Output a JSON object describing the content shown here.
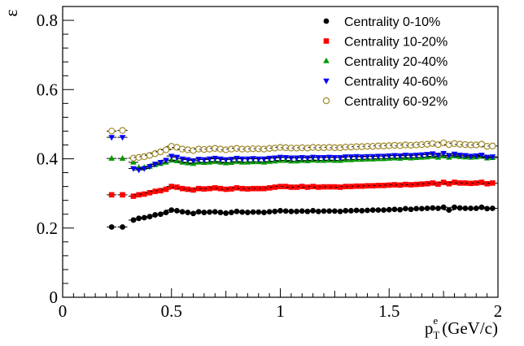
{
  "chart_data": {
    "type": "scatter",
    "xlabel": {
      "main": "p",
      "sup": "e",
      "sub": "T",
      "unit": "(GeV/c)"
    },
    "ylabel": "ε",
    "xlim": [
      0,
      2
    ],
    "ylim": [
      0,
      0.84
    ],
    "xticks": [
      0,
      0.5,
      1,
      1.5,
      2
    ],
    "xtick_labels": [
      "0",
      "0.5",
      "1",
      "1.5",
      "2"
    ],
    "yticks": [
      0,
      0.2,
      0.4,
      0.6,
      0.8
    ],
    "ytick_labels": [
      "0",
      "0.2",
      "0.4",
      "0.6",
      "0.8"
    ],
    "grid": false,
    "legend_position": "top-right",
    "x": [
      0.225,
      0.275,
      0.325,
      0.35,
      0.375,
      0.4,
      0.425,
      0.45,
      0.475,
      0.5,
      0.525,
      0.55,
      0.575,
      0.6,
      0.625,
      0.65,
      0.675,
      0.7,
      0.725,
      0.75,
      0.775,
      0.8,
      0.825,
      0.85,
      0.875,
      0.9,
      0.925,
      0.95,
      0.975,
      1.0,
      1.025,
      1.05,
      1.075,
      1.1,
      1.125,
      1.15,
      1.175,
      1.2,
      1.225,
      1.25,
      1.275,
      1.3,
      1.325,
      1.35,
      1.375,
      1.4,
      1.425,
      1.45,
      1.475,
      1.5,
      1.525,
      1.55,
      1.575,
      1.6,
      1.625,
      1.65,
      1.675,
      1.7,
      1.725,
      1.75,
      1.775,
      1.8,
      1.825,
      1.85,
      1.875,
      1.9,
      1.925,
      1.95,
      1.975
    ],
    "series": [
      {
        "name": "Centrality 0-10%",
        "marker": "circle",
        "color": "#000000",
        "values": [
          0.203,
          0.203,
          0.223,
          0.228,
          0.23,
          0.233,
          0.238,
          0.24,
          0.245,
          0.252,
          0.25,
          0.247,
          0.245,
          0.242,
          0.247,
          0.245,
          0.246,
          0.247,
          0.245,
          0.243,
          0.245,
          0.248,
          0.246,
          0.245,
          0.246,
          0.246,
          0.245,
          0.247,
          0.248,
          0.25,
          0.249,
          0.248,
          0.248,
          0.249,
          0.248,
          0.25,
          0.248,
          0.249,
          0.249,
          0.249,
          0.248,
          0.25,
          0.25,
          0.251,
          0.25,
          0.251,
          0.252,
          0.252,
          0.252,
          0.253,
          0.254,
          0.253,
          0.256,
          0.254,
          0.256,
          0.256,
          0.257,
          0.258,
          0.257,
          0.26,
          0.252,
          0.26,
          0.258,
          0.257,
          0.257,
          0.257,
          0.26,
          0.256,
          0.257
        ]
      },
      {
        "name": "Centrality 10-20%",
        "marker": "square",
        "color": "#ff0000",
        "values": [
          0.296,
          0.296,
          0.292,
          0.296,
          0.298,
          0.302,
          0.306,
          0.308,
          0.312,
          0.32,
          0.318,
          0.314,
          0.312,
          0.31,
          0.314,
          0.313,
          0.314,
          0.316,
          0.314,
          0.312,
          0.313,
          0.316,
          0.314,
          0.313,
          0.314,
          0.314,
          0.314,
          0.316,
          0.318,
          0.32,
          0.32,
          0.318,
          0.318,
          0.32,
          0.318,
          0.32,
          0.318,
          0.319,
          0.319,
          0.319,
          0.318,
          0.32,
          0.32,
          0.321,
          0.321,
          0.322,
          0.322,
          0.323,
          0.323,
          0.324,
          0.325,
          0.324,
          0.326,
          0.325,
          0.326,
          0.327,
          0.328,
          0.33,
          0.327,
          0.332,
          0.328,
          0.332,
          0.33,
          0.33,
          0.329,
          0.33,
          0.332,
          0.328,
          0.33
        ]
      },
      {
        "name": "Centrality 20-40%",
        "marker": "triangle-up",
        "color": "#009900",
        "values": [
          0.401,
          0.401,
          0.39,
          0.375,
          0.375,
          0.378,
          0.383,
          0.386,
          0.39,
          0.396,
          0.394,
          0.39,
          0.388,
          0.386,
          0.39,
          0.389,
          0.39,
          0.392,
          0.39,
          0.388,
          0.389,
          0.392,
          0.39,
          0.39,
          0.391,
          0.391,
          0.39,
          0.392,
          0.393,
          0.395,
          0.395,
          0.393,
          0.393,
          0.395,
          0.394,
          0.396,
          0.395,
          0.395,
          0.396,
          0.395,
          0.395,
          0.397,
          0.397,
          0.398,
          0.398,
          0.399,
          0.399,
          0.4,
          0.4,
          0.401,
          0.402,
          0.401,
          0.403,
          0.402,
          0.403,
          0.404,
          0.405,
          0.407,
          0.404,
          0.408,
          0.404,
          0.408,
          0.406,
          0.405,
          0.404,
          0.405,
          0.407,
          0.402,
          0.403
        ]
      },
      {
        "name": "Centrality 40-60%",
        "marker": "triangle-down",
        "color": "#0000ff",
        "values": [
          0.462,
          0.462,
          0.372,
          0.368,
          0.372,
          0.378,
          0.385,
          0.39,
          0.396,
          0.408,
          0.405,
          0.4,
          0.398,
          0.395,
          0.399,
          0.398,
          0.4,
          0.402,
          0.4,
          0.398,
          0.399,
          0.402,
          0.4,
          0.4,
          0.401,
          0.4,
          0.4,
          0.402,
          0.403,
          0.405,
          0.404,
          0.403,
          0.403,
          0.404,
          0.403,
          0.405,
          0.404,
          0.404,
          0.405,
          0.404,
          0.404,
          0.406,
          0.406,
          0.407,
          0.406,
          0.407,
          0.407,
          0.408,
          0.408,
          0.409,
          0.41,
          0.409,
          0.411,
          0.41,
          0.411,
          0.412,
          0.413,
          0.415,
          0.411,
          0.416,
          0.41,
          0.414,
          0.411,
          0.41,
          0.408,
          0.409,
          0.411,
          0.405,
          0.406
        ]
      },
      {
        "name": "Centrality 60-92%",
        "marker": "open-circle",
        "color": "#a08a2a",
        "values": [
          0.48,
          0.482,
          0.402,
          0.404,
          0.406,
          0.41,
          0.415,
          0.42,
          0.426,
          0.436,
          0.433,
          0.428,
          0.426,
          0.424,
          0.428,
          0.427,
          0.428,
          0.43,
          0.428,
          0.426,
          0.428,
          0.43,
          0.428,
          0.428,
          0.429,
          0.429,
          0.428,
          0.43,
          0.431,
          0.433,
          0.432,
          0.431,
          0.431,
          0.432,
          0.431,
          0.433,
          0.432,
          0.432,
          0.433,
          0.432,
          0.432,
          0.434,
          0.434,
          0.435,
          0.435,
          0.436,
          0.436,
          0.437,
          0.437,
          0.438,
          0.439,
          0.438,
          0.44,
          0.439,
          0.44,
          0.441,
          0.442,
          0.444,
          0.441,
          0.446,
          0.441,
          0.444,
          0.442,
          0.441,
          0.44,
          0.44,
          0.442,
          0.436,
          0.437
        ]
      }
    ]
  }
}
